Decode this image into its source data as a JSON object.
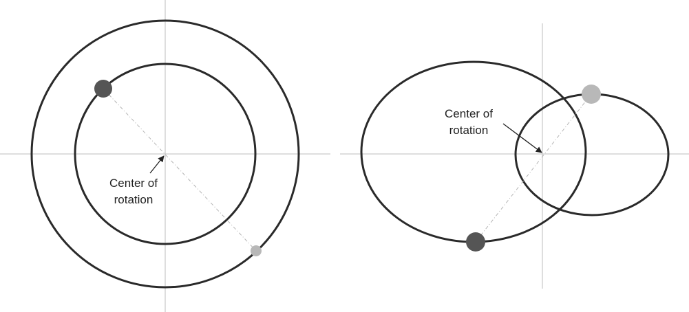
{
  "left_panel": {
    "label_line1": "Center of",
    "label_line2": "rotation",
    "body_large_color": "#555555",
    "body_small_color": "#b8b8b8"
  },
  "right_panel": {
    "label_line1": "Center of",
    "label_line2": "rotation",
    "body_large_color": "#555555",
    "body_small_color": "#b8b8b8"
  }
}
